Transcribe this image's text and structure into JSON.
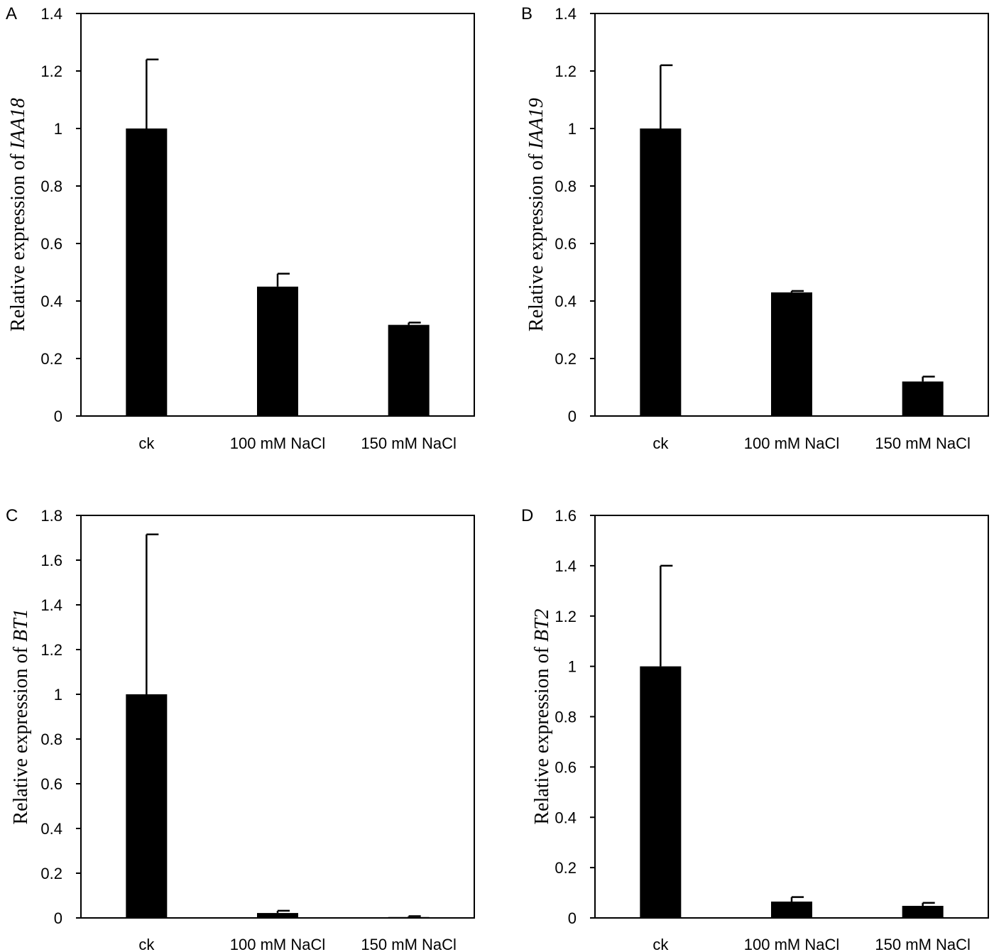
{
  "chart_data": [
    {
      "type": "bar",
      "panel": "A",
      "categories": [
        "ck",
        "100 mM NaCl",
        "150 mM NaCl"
      ],
      "values": [
        1.0,
        0.45,
        0.317
      ],
      "errors": [
        0.24,
        0.045,
        0.008
      ],
      "ylabel_prefix": "Relative expression of ",
      "ylabel_gene": "IAA18",
      "ylim": [
        0,
        1.4
      ],
      "yticks": [
        0,
        0.2,
        0.4,
        0.6,
        0.8,
        1,
        1.2,
        1.4
      ],
      "ytick_labels": [
        "0",
        "0.2",
        "0.4",
        "0.6",
        "0.8",
        "1",
        "1.2",
        "1.4"
      ],
      "bar_color": "#000000"
    },
    {
      "type": "bar",
      "panel": "B",
      "categories": [
        "ck",
        "100 mM NaCl",
        "150 mM NaCl"
      ],
      "values": [
        1.0,
        0.43,
        0.12
      ],
      "errors": [
        0.22,
        0.005,
        0.017
      ],
      "ylabel_prefix": "Relative expression of ",
      "ylabel_gene": "IAA19",
      "ylim": [
        0,
        1.4
      ],
      "yticks": [
        0,
        0.2,
        0.4,
        0.6,
        0.8,
        1,
        1.2,
        1.4
      ],
      "ytick_labels": [
        "0",
        "0.2",
        "0.4",
        "0.6",
        "0.8",
        "1",
        "1.2",
        "1.4"
      ],
      "bar_color": "#000000"
    },
    {
      "type": "bar",
      "panel": "C",
      "categories": [
        "ck",
        "100 mM NaCl",
        "150 mM NaCl"
      ],
      "values": [
        1.0,
        0.022,
        0.004
      ],
      "errors": [
        0.715,
        0.01,
        0.004
      ],
      "ylabel_prefix": "Relative expression of ",
      "ylabel_gene": "BT1",
      "ylim": [
        0,
        1.8
      ],
      "yticks": [
        0,
        0.2,
        0.4,
        0.6,
        0.8,
        1,
        1.2,
        1.4,
        1.6,
        1.8
      ],
      "ytick_labels": [
        "0",
        "0.2",
        "0.4",
        "0.6",
        "0.8",
        "1",
        "1.2",
        "1.4",
        "1.6",
        "1.8"
      ],
      "bar_color": "#000000"
    },
    {
      "type": "bar",
      "panel": "D",
      "categories": [
        "ck",
        "100 mM NaCl",
        "150 mM NaCl"
      ],
      "values": [
        1.0,
        0.065,
        0.048
      ],
      "errors": [
        0.4,
        0.018,
        0.012
      ],
      "ylabel_prefix": "Relative expression of ",
      "ylabel_gene": "BT2",
      "ylim": [
        0,
        1.6
      ],
      "yticks": [
        0,
        0.2,
        0.4,
        0.6,
        0.8,
        1,
        1.2,
        1.4,
        1.6
      ],
      "ytick_labels": [
        "0",
        "0.2",
        "0.4",
        "0.6",
        "0.8",
        "1",
        "1.2",
        "1.4",
        "1.6"
      ],
      "bar_color": "#000000"
    }
  ]
}
